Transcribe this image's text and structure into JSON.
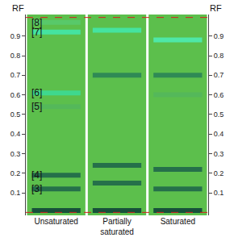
{
  "chart_data": {
    "type": "tlc",
    "y_label": "RF",
    "ylim": [
      -0.015,
      1.01
    ],
    "yticks": [
      0.1,
      0.2,
      0.3,
      0.4,
      0.5,
      0.6,
      0.7,
      0.8,
      0.9
    ],
    "origin": 0,
    "solvent_front": 0.995,
    "color": "#5cbf4c",
    "grid": false,
    "lanes": [
      {
        "name": "Unsaturated",
        "bands": [
          {
            "rf": 0.01,
            "color": "#17503a"
          },
          {
            "rf": 0.12,
            "color": "#25704a",
            "label": "[3]"
          },
          {
            "rf": 0.19,
            "color": "#25704a",
            "label": "[4]"
          },
          {
            "rf": 0.54,
            "color": "#54b85a",
            "label": "[5]"
          },
          {
            "rf": 0.61,
            "color": "#3fd88e",
            "label": "[6]"
          },
          {
            "rf": 0.92,
            "color": "#45e3a0",
            "label": "[7]"
          },
          {
            "rf": 0.97,
            "color": "#58c96a",
            "label": "[8]"
          }
        ]
      },
      {
        "name": "Partially saturated",
        "bands": [
          {
            "rf": 0.01,
            "color": "#17503a"
          },
          {
            "rf": 0.15,
            "color": "#25704a"
          },
          {
            "rf": 0.24,
            "color": "#25704a"
          },
          {
            "rf": 0.7,
            "color": "#2f8a55"
          },
          {
            "rf": 0.93,
            "color": "#45e3a0"
          }
        ]
      },
      {
        "name": "Saturated",
        "bands": [
          {
            "rf": 0.01,
            "color": "#17503a"
          },
          {
            "rf": 0.12,
            "color": "#25704a"
          },
          {
            "rf": 0.22,
            "color": "#25704a"
          },
          {
            "rf": 0.6,
            "color": "#54b85a"
          },
          {
            "rf": 0.7,
            "color": "#2f8a55"
          },
          {
            "rf": 0.88,
            "color": "#4ee8a8"
          }
        ]
      }
    ]
  }
}
